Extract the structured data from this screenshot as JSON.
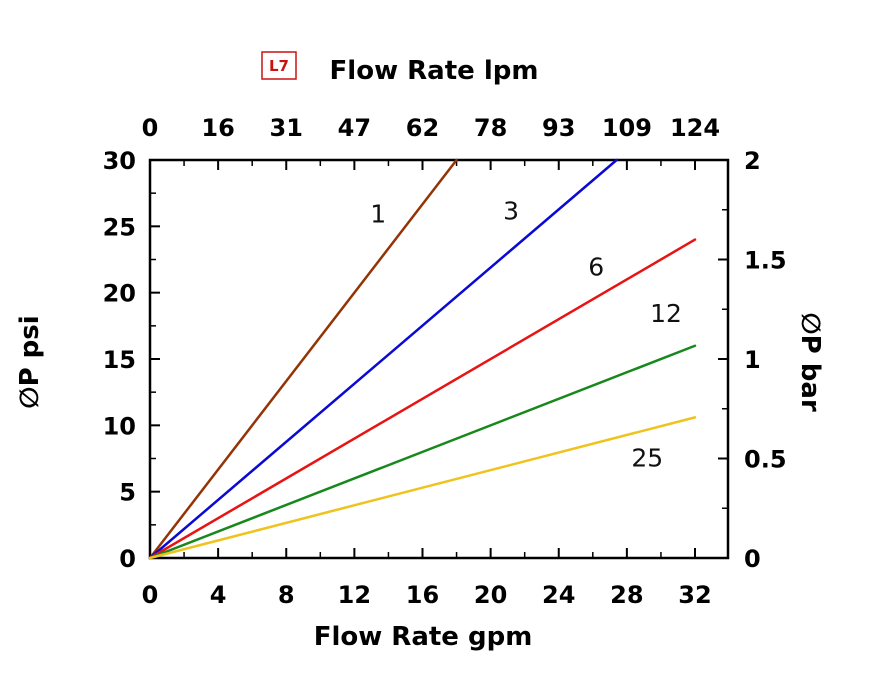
{
  "chart_data": {
    "type": "line",
    "tag": "L7",
    "background": "#ffffff",
    "frame_color": "#000000",
    "top_axis": {
      "label": "Flow Rate lpm",
      "tick_labels": [
        "0",
        "16",
        "31",
        "47",
        "62",
        "78",
        "93",
        "109",
        "124"
      ]
    },
    "bottom_axis": {
      "label": "Flow Rate gpm",
      "ticks": [
        0,
        4,
        8,
        12,
        16,
        20,
        24,
        28,
        32
      ],
      "xlim": [
        0,
        33.9
      ]
    },
    "left_axis": {
      "label": "∅P psi",
      "ticks": [
        0,
        5,
        10,
        15,
        20,
        25,
        30
      ],
      "ylim": [
        0,
        30
      ]
    },
    "right_axis": {
      "label": "∅P bar",
      "ticks": [
        0,
        0.5,
        1,
        1.5,
        2
      ],
      "ylim": [
        0,
        2
      ]
    },
    "series": [
      {
        "name": "1",
        "color": "#943405",
        "points": [
          [
            0,
            0
          ],
          [
            18,
            30
          ]
        ],
        "label_pos": [
          13.4,
          25.3
        ]
      },
      {
        "name": "3",
        "color": "#0a0ad2",
        "points": [
          [
            0,
            0
          ],
          [
            27.4,
            30
          ]
        ],
        "label_pos": [
          21.2,
          25.5
        ]
      },
      {
        "name": "6",
        "color": "#e81313",
        "points": [
          [
            0,
            0
          ],
          [
            32,
            24
          ]
        ],
        "label_pos": [
          26.2,
          21.3
        ]
      },
      {
        "name": "12",
        "color": "#18881c",
        "points": [
          [
            0,
            0
          ],
          [
            32,
            16
          ]
        ],
        "label_pos": [
          30.3,
          17.8
        ]
      },
      {
        "name": "25",
        "color": "#efc31c",
        "points": [
          [
            0,
            0
          ],
          [
            32,
            10.6
          ]
        ],
        "label_pos": [
          29.2,
          6.9
        ]
      }
    ]
  }
}
